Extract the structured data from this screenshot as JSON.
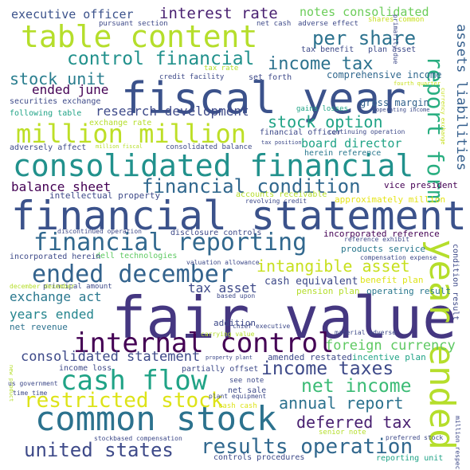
{
  "words": [
    {
      "text": "fiscal year",
      "color": "#3b528b"
    },
    {
      "text": "financial statement",
      "color": "#3b528b"
    },
    {
      "text": "fair value",
      "color": "#453781"
    },
    {
      "text": "common stock",
      "color": "#2c728e"
    },
    {
      "text": "consolidated financial",
      "color": "#21918c"
    },
    {
      "text": "table content",
      "color": "#b5de2b"
    },
    {
      "text": "year ended",
      "color": "#b5de2b"
    },
    {
      "text": "million million",
      "color": "#bddf26"
    },
    {
      "text": "cash flow",
      "color": "#20a386"
    },
    {
      "text": "internal control",
      "color": "#440154"
    },
    {
      "text": "financial reporting",
      "color": "#31688e"
    },
    {
      "text": "ended december",
      "color": "#33638d"
    },
    {
      "text": "financial condition",
      "color": "#31688e"
    },
    {
      "text": "report form",
      "color": "#28ae80"
    },
    {
      "text": "control financial",
      "color": "#21918c"
    },
    {
      "text": "income tax",
      "color": "#2c728e"
    },
    {
      "text": "per share",
      "color": "#2c728e"
    },
    {
      "text": "restricted stock",
      "color": "#dde318"
    },
    {
      "text": "income taxes",
      "color": "#3e4a89"
    },
    {
      "text": "net income",
      "color": "#3bbb75"
    },
    {
      "text": "results operation",
      "color": "#31688e"
    },
    {
      "text": "united states",
      "color": "#3e4a89"
    },
    {
      "text": "intangible asset",
      "color": "#c8e020"
    },
    {
      "text": "stock option",
      "color": "#20a386"
    },
    {
      "text": "interest rate",
      "color": "#481f70"
    },
    {
      "text": "stock unit",
      "color": "#287d8e"
    },
    {
      "text": "annual report",
      "color": "#2c728e"
    },
    {
      "text": "deferred tax",
      "color": "#481f70"
    },
    {
      "text": "foreign currency",
      "color": "#5ec962"
    },
    {
      "text": "consolidated statement",
      "color": "#3e4a89"
    },
    {
      "text": "assets liabilities",
      "color": "#355f8d"
    },
    {
      "text": "executive officer",
      "color": "#3b528b"
    },
    {
      "text": "notes consolidated",
      "color": "#6ccd5a"
    },
    {
      "text": "research development",
      "color": "#3e4a89"
    },
    {
      "text": "balance sheet",
      "color": "#440154"
    },
    {
      "text": "board director",
      "color": "#20a386"
    },
    {
      "text": "exchange act",
      "color": "#2a788e"
    },
    {
      "text": "tax asset",
      "color": "#3e4a89"
    },
    {
      "text": "ended june",
      "color": "#440154"
    },
    {
      "text": "years ended",
      "color": "#25858e"
    },
    {
      "text": "cash equivalent",
      "color": "#3e4a89"
    },
    {
      "text": "comprehensive income",
      "color": "#31688e"
    },
    {
      "text": "gross margin",
      "color": "#33638d"
    },
    {
      "text": "intellectual property",
      "color": "#3e4a89"
    },
    {
      "text": "vice president",
      "color": "#440154"
    },
    {
      "text": "incorporated reference",
      "color": "#440154"
    },
    {
      "text": "approximately million",
      "color": "#e5e419"
    },
    {
      "text": "products service",
      "color": "#2a788e"
    },
    {
      "text": "operating result",
      "color": "#2a788e"
    },
    {
      "text": "pension plan",
      "color": "#b5de2b"
    },
    {
      "text": "benefit plan",
      "color": "#dde318"
    },
    {
      "text": "condition result",
      "color": "#3e4a89"
    },
    {
      "text": "incentive plan",
      "color": "#20a386"
    },
    {
      "text": "amended restated",
      "color": "#3e4a89"
    },
    {
      "text": "net revenue",
      "color": "#2c728e"
    },
    {
      "text": "addition",
      "color": "#3e4a89"
    },
    {
      "text": "tax benefit",
      "color": "#3e4a89"
    },
    {
      "text": "plan asset",
      "color": "#3e4a89"
    },
    {
      "text": "pursuant section",
      "color": "#3e4a89"
    },
    {
      "text": "net cash",
      "color": "#3e4a89"
    },
    {
      "text": "adverse effect",
      "color": "#3e4a89"
    },
    {
      "text": "shares common",
      "color": "#c8e020"
    },
    {
      "text": "credit facility",
      "color": "#3e4a89"
    },
    {
      "text": "set forth",
      "color": "#3e4a89"
    },
    {
      "text": "tax rate",
      "color": "#b5de2b"
    },
    {
      "text": "securities exchange",
      "color": "#3e4a89"
    },
    {
      "text": "following table",
      "color": "#20a386"
    },
    {
      "text": "exchange rate",
      "color": "#b5de2b"
    },
    {
      "text": "adversely affect",
      "color": "#3e4a89"
    },
    {
      "text": "consolidated balance",
      "color": "#3e4a89"
    },
    {
      "text": "million fiscal",
      "color": "#b5de2b"
    },
    {
      "text": "financial officer",
      "color": "#3e4a89"
    },
    {
      "text": "continuing operation",
      "color": "#3e4a89"
    },
    {
      "text": "herein reference",
      "color": "#2a788e"
    },
    {
      "text": "gains losses",
      "color": "#20a386"
    },
    {
      "text": "primarily due",
      "color": "#3e4a89"
    },
    {
      "text": "fourth quarter",
      "color": "#c8e020"
    },
    {
      "text": "currency exchange",
      "color": "#c8e020"
    },
    {
      "text": "tax position",
      "color": "#3e4a89"
    },
    {
      "text": "accounts receivable",
      "color": "#b5de2b"
    },
    {
      "text": "revolving credit",
      "color": "#3e4a89"
    },
    {
      "text": "discontinued operation",
      "color": "#3e4a89"
    },
    {
      "text": "disclosure controls",
      "color": "#3e4a89"
    },
    {
      "text": "reference exhibit",
      "color": "#3e4a89"
    },
    {
      "text": "dell technologies",
      "color": "#5ec962"
    },
    {
      "text": "compensation expense",
      "color": "#3e4a89"
    },
    {
      "text": "incorporated herein",
      "color": "#3e4a89"
    },
    {
      "text": "valuation allowance",
      "color": "#3e4a89"
    },
    {
      "text": "principal amount",
      "color": "#3e4a89"
    },
    {
      "text": "based upon",
      "color": "#3e4a89"
    },
    {
      "text": "december december",
      "color": "#b5de2b"
    },
    {
      "text": "chief executive",
      "color": "#3e4a89"
    },
    {
      "text": "material adverse",
      "color": "#3e4a89"
    },
    {
      "text": "carrying value",
      "color": "#b5de2b"
    },
    {
      "text": "new product",
      "color": "#b5de2b"
    },
    {
      "text": "income loss",
      "color": "#3e4a89"
    },
    {
      "text": "partially offset",
      "color": "#3e4a89"
    },
    {
      "text": "property plant",
      "color": "#3e4a89"
    },
    {
      "text": "us government",
      "color": "#3e4a89"
    },
    {
      "text": "time time",
      "color": "#3e4a89"
    },
    {
      "text": "net sale",
      "color": "#3e4a89"
    },
    {
      "text": "plant equipment",
      "color": "#3e4a89"
    },
    {
      "text": "see note",
      "color": "#3e4a89"
    },
    {
      "text": "cash cash",
      "color": "#dde318"
    },
    {
      "text": "senior note",
      "color": "#b5de2b"
    },
    {
      "text": "stockbased compensation",
      "color": "#3e4a89"
    },
    {
      "text": "preferred stock",
      "color": "#3e4a89"
    },
    {
      "text": "controls procedures",
      "color": "#3e4a89"
    },
    {
      "text": "reporting unit",
      "color": "#20a386"
    },
    {
      "text": "million respectively",
      "color": "#3e4a89"
    },
    {
      "text": "operating income",
      "color": "#3e4a89"
    }
  ]
}
